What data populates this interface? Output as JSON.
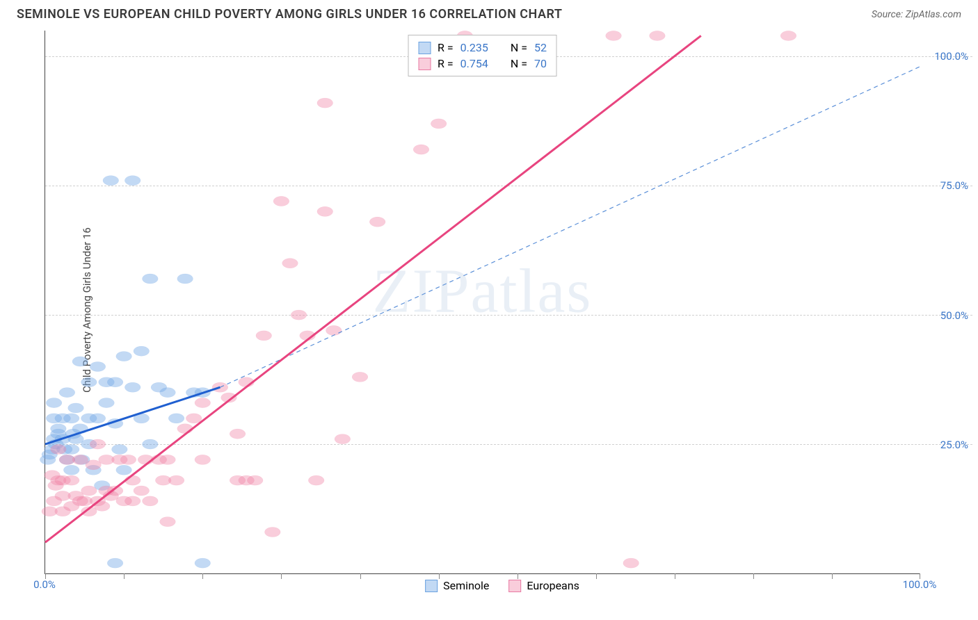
{
  "header": {
    "title": "SEMINOLE VS EUROPEAN CHILD POVERTY AMONG GIRLS UNDER 16 CORRELATION CHART",
    "source_label": "Source:",
    "source_name": "ZipAtlas.com"
  },
  "y_axis_label": "Child Poverty Among Girls Under 16",
  "watermark": "ZIPatlas",
  "chart": {
    "type": "scatter",
    "background_color": "#ffffff",
    "grid_color": "#d0d0d0",
    "axis_color": "#444444",
    "xlim": [
      0,
      100
    ],
    "ylim": [
      0,
      105
    ],
    "ytick_values": [
      25,
      50,
      75,
      100
    ],
    "ytick_labels": [
      "25.0%",
      "50.0%",
      "75.0%",
      "100.0%"
    ],
    "ytick_color": "#3a76c8",
    "xtick_label_left": "0.0%",
    "xtick_label_right": "100.0%",
    "xtick_color": "#3a76c8",
    "xtick_positions": [
      0,
      9,
      18,
      27,
      36,
      45,
      54,
      63,
      72,
      81,
      90,
      100
    ],
    "series": [
      {
        "name": "Seminole",
        "color_fill": "rgba(120,170,230,0.45)",
        "color_stroke": "#6aa1e0",
        "marker_radius": 9,
        "R": 0.235,
        "N": 52,
        "regression_solid": {
          "x1": 0,
          "y1": 25,
          "x2": 20,
          "y2": 36,
          "color": "#1f5fd0",
          "width": 3
        },
        "regression_dashed": {
          "x1": 20,
          "y1": 36,
          "x2": 100,
          "y2": 98,
          "color": "#5a8fd8",
          "width": 1.2,
          "dash": "6,5"
        },
        "points": [
          [
            0.3,
            22
          ],
          [
            0.5,
            23
          ],
          [
            0.8,
            24
          ],
          [
            1,
            26
          ],
          [
            1,
            30
          ],
          [
            1,
            33
          ],
          [
            1.2,
            25
          ],
          [
            1.5,
            27
          ],
          [
            1.5,
            28
          ],
          [
            2,
            30
          ],
          [
            2,
            26
          ],
          [
            2.2,
            24
          ],
          [
            2.5,
            22
          ],
          [
            2.5,
            35
          ],
          [
            3,
            30
          ],
          [
            3,
            24
          ],
          [
            3,
            20
          ],
          [
            3.2,
            27
          ],
          [
            3.5,
            32
          ],
          [
            3.5,
            26
          ],
          [
            4,
            28
          ],
          [
            4,
            41
          ],
          [
            4.2,
            22
          ],
          [
            5,
            30
          ],
          [
            5,
            37
          ],
          [
            5,
            25
          ],
          [
            5.5,
            20
          ],
          [
            6,
            30
          ],
          [
            6,
            40
          ],
          [
            6.5,
            17
          ],
          [
            7,
            33
          ],
          [
            7,
            37
          ],
          [
            7.5,
            76
          ],
          [
            8,
            29
          ],
          [
            8,
            37
          ],
          [
            8.5,
            24
          ],
          [
            9,
            42
          ],
          [
            9,
            20
          ],
          [
            10,
            36
          ],
          [
            10,
            76
          ],
          [
            11,
            30
          ],
          [
            11,
            43
          ],
          [
            12,
            57
          ],
          [
            12,
            25
          ],
          [
            13,
            36
          ],
          [
            14,
            35
          ],
          [
            15,
            30
          ],
          [
            16,
            57
          ],
          [
            17,
            35
          ],
          [
            18,
            35
          ],
          [
            8,
            2
          ],
          [
            18,
            2
          ]
        ]
      },
      {
        "name": "Europeans",
        "color_fill": "rgba(240,130,165,0.40)",
        "color_stroke": "#e87aa3",
        "marker_radius": 9,
        "R": 0.754,
        "N": 70,
        "regression_solid": {
          "x1": 0,
          "y1": 6,
          "x2": 75,
          "y2": 104,
          "color": "#e8447f",
          "width": 3
        },
        "points": [
          [
            0.5,
            12
          ],
          [
            0.8,
            19
          ],
          [
            1,
            14
          ],
          [
            1.2,
            17
          ],
          [
            1.5,
            18
          ],
          [
            1.5,
            24
          ],
          [
            2,
            12
          ],
          [
            2,
            15
          ],
          [
            2,
            18
          ],
          [
            2.5,
            22
          ],
          [
            3,
            13
          ],
          [
            3,
            18
          ],
          [
            3.5,
            15
          ],
          [
            4,
            14
          ],
          [
            4,
            22
          ],
          [
            4.5,
            14
          ],
          [
            5,
            12
          ],
          [
            5,
            16
          ],
          [
            5.5,
            21
          ],
          [
            6,
            14
          ],
          [
            6,
            25
          ],
          [
            6.5,
            13
          ],
          [
            7,
            16
          ],
          [
            7,
            22
          ],
          [
            7.5,
            15
          ],
          [
            8,
            16
          ],
          [
            8.5,
            22
          ],
          [
            9,
            14
          ],
          [
            9.5,
            22
          ],
          [
            10,
            14
          ],
          [
            10,
            18
          ],
          [
            11,
            16
          ],
          [
            11.5,
            22
          ],
          [
            12,
            14
          ],
          [
            13,
            22
          ],
          [
            13.5,
            18
          ],
          [
            14,
            10
          ],
          [
            14,
            22
          ],
          [
            15,
            18
          ],
          [
            16,
            28
          ],
          [
            17,
            30
          ],
          [
            18,
            33
          ],
          [
            18,
            22
          ],
          [
            20,
            36
          ],
          [
            21,
            34
          ],
          [
            22,
            27
          ],
          [
            22,
            18
          ],
          [
            23,
            18
          ],
          [
            23,
            37
          ],
          [
            24,
            18
          ],
          [
            25,
            46
          ],
          [
            26,
            8
          ],
          [
            27,
            72
          ],
          [
            28,
            60
          ],
          [
            29,
            50
          ],
          [
            30,
            46
          ],
          [
            31,
            18
          ],
          [
            32,
            70
          ],
          [
            32,
            91
          ],
          [
            33,
            47
          ],
          [
            34,
            26
          ],
          [
            36,
            38
          ],
          [
            38,
            68
          ],
          [
            43,
            82
          ],
          [
            45,
            87
          ],
          [
            48,
            104
          ],
          [
            65,
            104
          ],
          [
            67,
            2
          ],
          [
            70,
            104
          ],
          [
            85,
            104
          ]
        ]
      }
    ],
    "legend_top": {
      "stat_label_R": "R =",
      "stat_label_N": "N =",
      "value_color": "#3a76c8",
      "text_color": "#333"
    },
    "legend_bottom": {
      "items": [
        "Seminole",
        "Europeans"
      ]
    }
  }
}
